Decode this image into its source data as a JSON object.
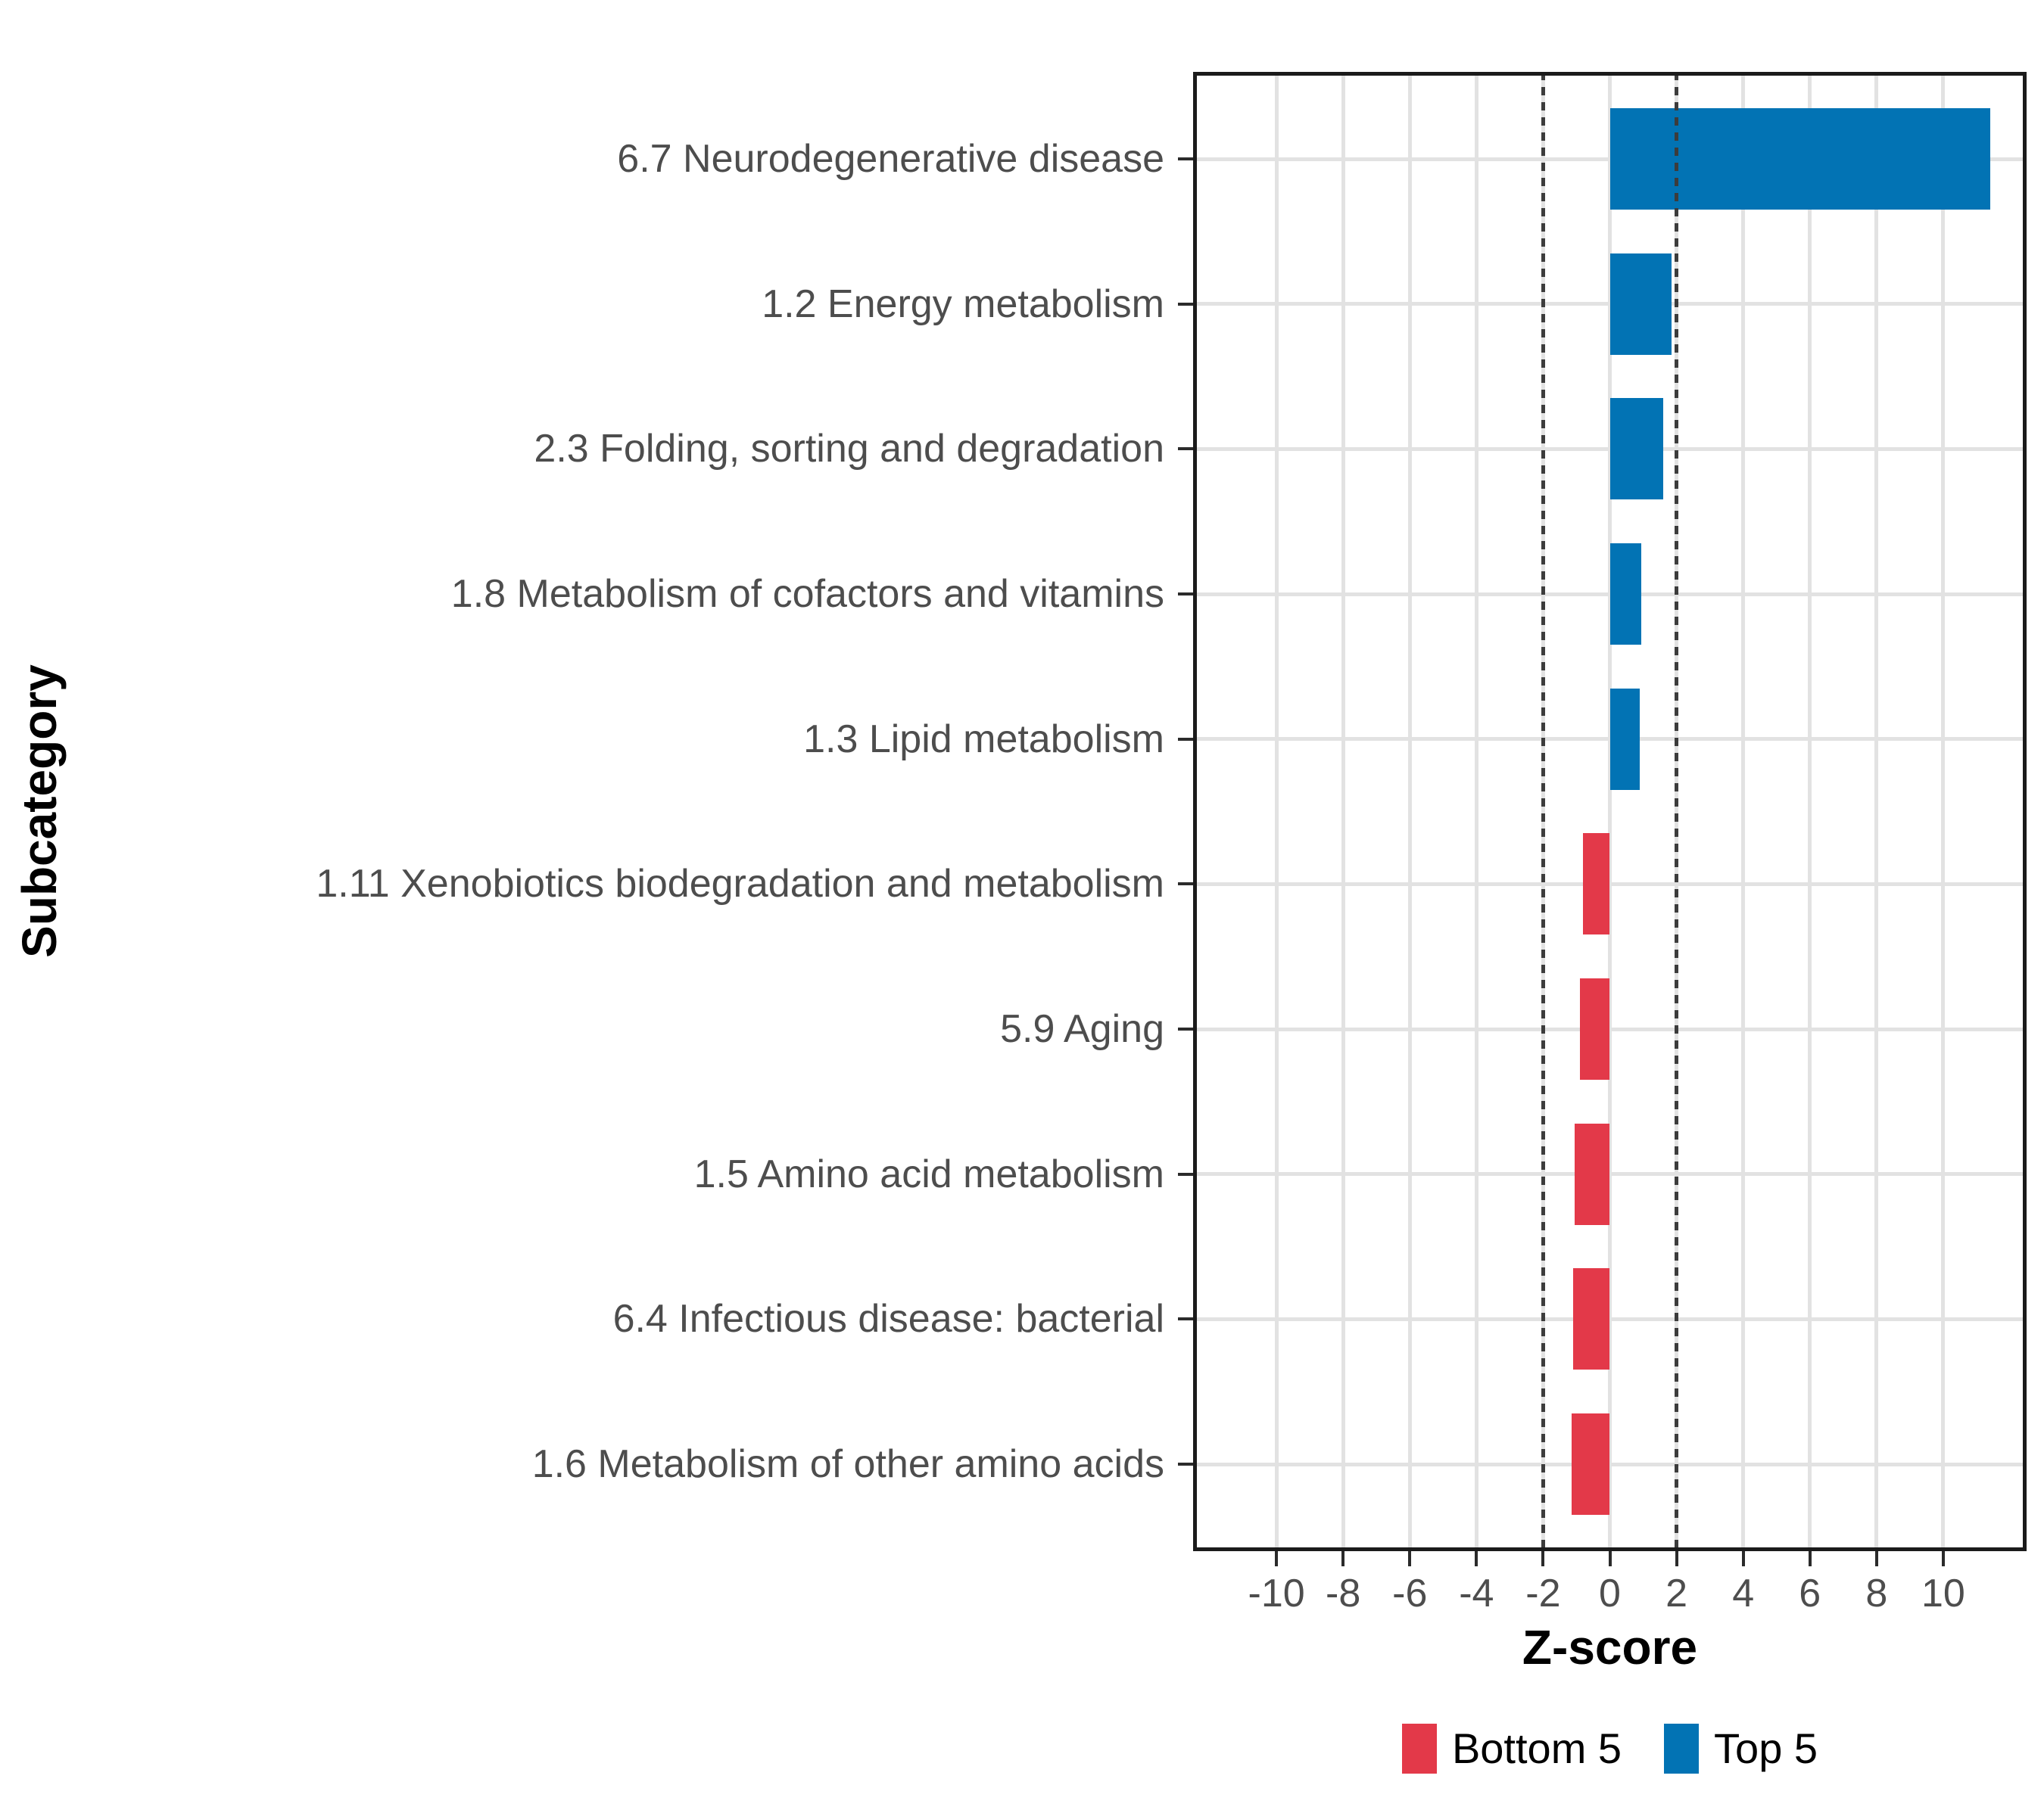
{
  "figure": {
    "background": "#FFFFFF"
  },
  "chart_data": {
    "type": "bar",
    "orientation": "horizontal",
    "title": "",
    "xlabel": "Z-score",
    "ylabel": "Subcategory",
    "xlim": [
      -12.5,
      12.5
    ],
    "xticks": [
      -10,
      -8,
      -6,
      -4,
      -2,
      0,
      2,
      4,
      6,
      8,
      10
    ],
    "grid": {
      "show_major": true,
      "show_minor": false,
      "color": "#E2E2E2"
    },
    "reference_lines": {
      "values": [
        -2,
        2
      ],
      "style": "dotted",
      "color": "#3c3c3c"
    },
    "categories": [
      "6.7 Neurodegenerative disease",
      "1.2 Energy metabolism",
      "2.3 Folding, sorting and degradation",
      "1.8 Metabolism of cofactors and vitamins",
      "1.3 Lipid metabolism",
      "1.11 Xenobiotics biodegradation and metabolism",
      "5.9 Aging",
      "1.5 Amino acid metabolism",
      "6.4 Infectious disease: bacterial",
      "1.6 Metabolism of other amino acids"
    ],
    "values": [
      11.4,
      1.85,
      1.6,
      0.95,
      0.9,
      -0.8,
      -0.9,
      -1.05,
      -1.1,
      -1.15
    ],
    "groups": [
      "Top 5",
      "Top 5",
      "Top 5",
      "Top 5",
      "Top 5",
      "Bottom 5",
      "Bottom 5",
      "Bottom 5",
      "Bottom 5",
      "Bottom 5"
    ],
    "group_colors": {
      "Bottom 5": "#E33949",
      "Top 5": "#0273B4"
    },
    "legend": {
      "position": "bottom",
      "entries": [
        {
          "label": "Bottom 5",
          "color": "#E33949"
        },
        {
          "label": "Top 5",
          "color": "#0273B4"
        }
      ]
    }
  }
}
